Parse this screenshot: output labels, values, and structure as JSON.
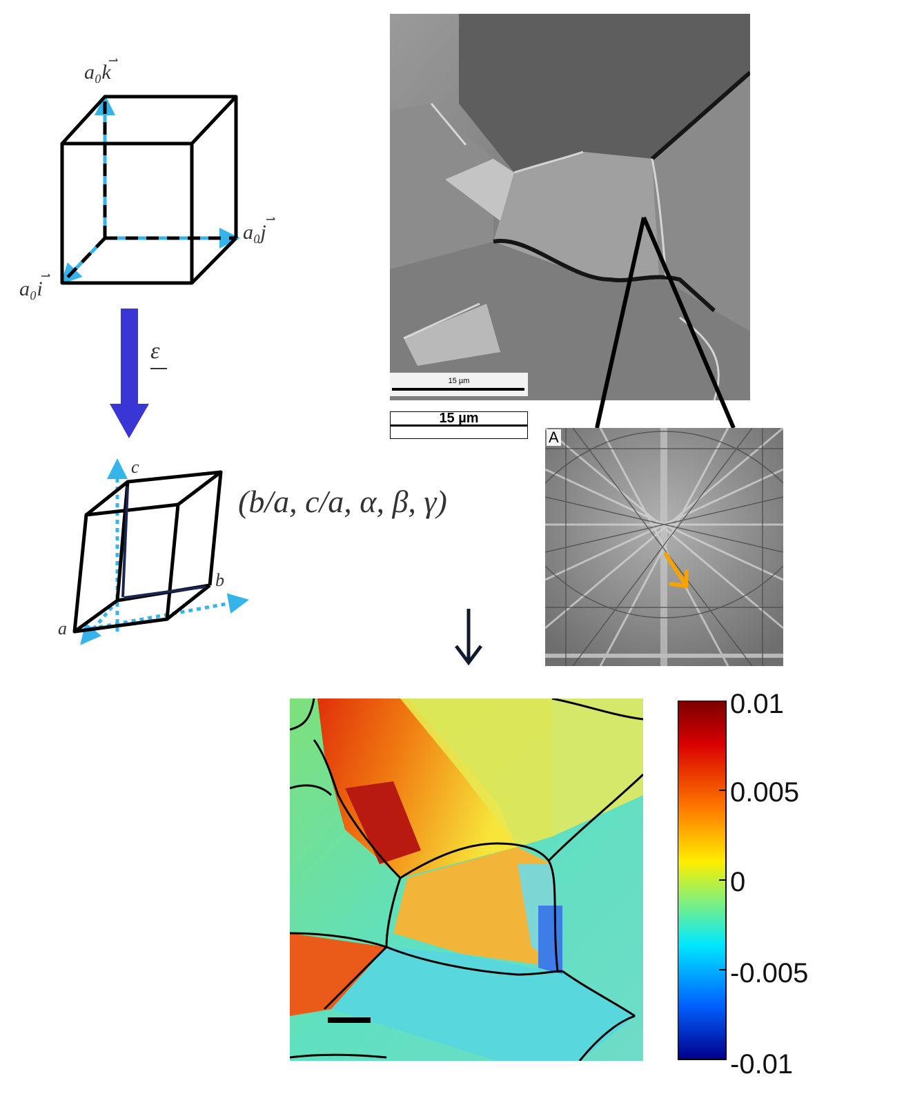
{
  "cubic_cell": {
    "label_i": "a₀i",
    "label_j": "a₀j",
    "label_k": "a₀k"
  },
  "strain_arrow": {
    "label": "ε"
  },
  "triclinic_cell": {
    "label_a": "a",
    "label_b": "b",
    "label_c": "c",
    "parameters": "(b/a, c/a, α, β, γ)"
  },
  "sem_image": {
    "scale_bar_small": "15 µm",
    "scale_bar_large": "15 µm"
  },
  "ebsd_pattern": {
    "panel_label": "A"
  },
  "strain_map": {
    "colorbar_ticks": [
      "0.01",
      "0.005",
      "0",
      "-0.005",
      "-0.01"
    ]
  },
  "colors": {
    "strain_arrow": "#3a36d6",
    "axis_arrows": "#37b3ec",
    "pattern_marker": "#f5a300",
    "flow_arrow": "#0f1a2e"
  }
}
